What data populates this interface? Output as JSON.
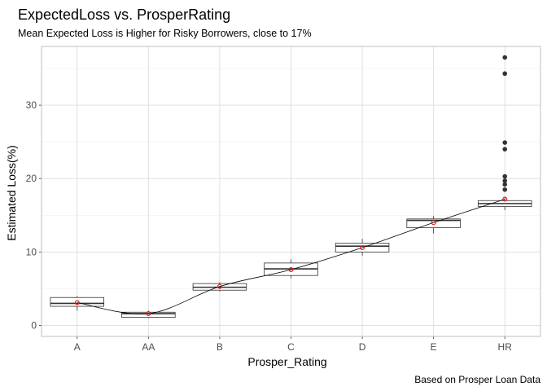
{
  "chart_data": {
    "type": "boxplot",
    "title": "ExpectedLoss vs. ProsperRating",
    "subtitle": "Mean Expected Loss is Higher for Risky Borrowers, close to 17%",
    "caption": "Based on Prosper Loan Data",
    "xlabel": "Prosper_Rating",
    "ylabel": "Estimated Loss(%)",
    "ylim": [
      -1.5,
      38
    ],
    "yticks": [
      0,
      10,
      20,
      30
    ],
    "categories": [
      "A",
      "AA",
      "B",
      "C",
      "D",
      "E",
      "HR"
    ],
    "boxes": [
      {
        "category": "A",
        "min": 2.0,
        "q1": 2.6,
        "median": 3.0,
        "q3": 3.8,
        "max": 4.0
      },
      {
        "category": "AA",
        "min": 1.0,
        "q1": 1.1,
        "median": 1.6,
        "q3": 1.8,
        "max": 2.0
      },
      {
        "category": "B",
        "min": 4.6,
        "q1": 4.8,
        "median": 5.2,
        "q3": 5.7,
        "max": 5.9
      },
      {
        "category": "C",
        "min": 6.4,
        "q1": 6.8,
        "median": 7.7,
        "q3": 8.5,
        "max": 9.0
      },
      {
        "category": "D",
        "min": 9.5,
        "q1": 10.0,
        "median": 10.8,
        "q3": 11.2,
        "max": 11.8
      },
      {
        "category": "E",
        "min": 12.5,
        "q1": 13.3,
        "median": 14.3,
        "q3": 14.5,
        "max": 14.9
      },
      {
        "category": "HR",
        "min": 15.7,
        "q1": 16.2,
        "median": 16.6,
        "q3": 17.0,
        "max": 17.5
      }
    ],
    "outliers": [
      {
        "category": "HR",
        "values": [
          36.5,
          34.3,
          24.9,
          24.0,
          20.3,
          19.7,
          19.2,
          18.5
        ]
      }
    ],
    "means": [
      3.1,
      1.6,
      5.3,
      7.6,
      10.6,
      14.0,
      17.2
    ],
    "mean_line": true,
    "grid": true,
    "colors": {
      "mean_point": "#e41a1c",
      "outlier": "#333333",
      "box_stroke": "#333333"
    }
  }
}
